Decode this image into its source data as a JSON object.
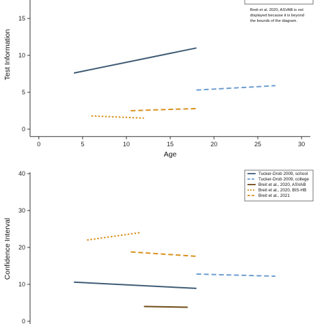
{
  "chart_data": [
    {
      "type": "line",
      "ylabel": "Test Information",
      "xlabel": "Age",
      "xlim": [
        -1,
        31
      ],
      "ylim": [
        -1,
        17
      ],
      "xticks": [
        0,
        5,
        10,
        15,
        20,
        25,
        30
      ],
      "yticks": [
        0,
        5,
        10,
        15
      ],
      "legend": {
        "position": "top-right",
        "visible_entries": [
          2
        ]
      },
      "annotation": [
        "Breit et al. 2020, ASVAB is not",
        "displayed because it is beyond",
        "the bounds of the diagram."
      ],
      "series": [
        {
          "name": "Tucker-Drob 2009, school",
          "color": "#3f5b75",
          "dash": "solid",
          "x": [
            4,
            18
          ],
          "y": [
            7.6,
            11.0
          ]
        },
        {
          "name": "Tucker-Drob 2009, college",
          "color": "#6a9ccf",
          "dash": "dashed",
          "x": [
            18,
            27
          ],
          "y": [
            5.3,
            5.9
          ]
        },
        {
          "name": "Breit et al., 2020, BIS-HB",
          "color": "#d8901a",
          "dash": "dotted",
          "x": [
            6,
            12
          ],
          "y": [
            1.8,
            1.5
          ]
        },
        {
          "name": "Breit et al., 2021",
          "color": "#d8901a",
          "dash": "dashed",
          "x": [
            10.5,
            18
          ],
          "y": [
            2.5,
            2.8
          ]
        }
      ]
    },
    {
      "type": "line",
      "ylabel": "Confidence Interval",
      "xlabel": "",
      "xlim": [
        -1,
        31
      ],
      "ylim": [
        0,
        42
      ],
      "yticks": [
        0,
        10,
        20,
        30,
        40
      ],
      "legend": {
        "position": "top-right",
        "visible_entries": [
          0,
          1,
          2,
          3,
          4
        ]
      },
      "series": [
        {
          "name": "Tucker-Drob 2009, school",
          "color": "#3f5b75",
          "dash": "solid",
          "x": [
            4,
            18
          ],
          "y": [
            10.6,
            8.9
          ]
        },
        {
          "name": "Tucker-Drob 2009, college",
          "color": "#6a9ccf",
          "dash": "dashed",
          "x": [
            18,
            27
          ],
          "y": [
            12.8,
            12.2
          ]
        },
        {
          "name": "Breit et al., 2020, ASVAB",
          "color": "#6e4a14",
          "dash": "solid",
          "x": [
            12,
            17
          ],
          "y": [
            4.0,
            3.8
          ]
        },
        {
          "name": "Breit et al., 2020, BIS-HB",
          "color": "#d8901a",
          "dash": "dotted",
          "x": [
            5.5,
            11.5
          ],
          "y": [
            22.0,
            24.0
          ]
        },
        {
          "name": "Breit et al., 2021",
          "color": "#d8901a",
          "dash": "dashed",
          "x": [
            10.5,
            18
          ],
          "y": [
            18.8,
            17.6
          ]
        }
      ]
    }
  ]
}
